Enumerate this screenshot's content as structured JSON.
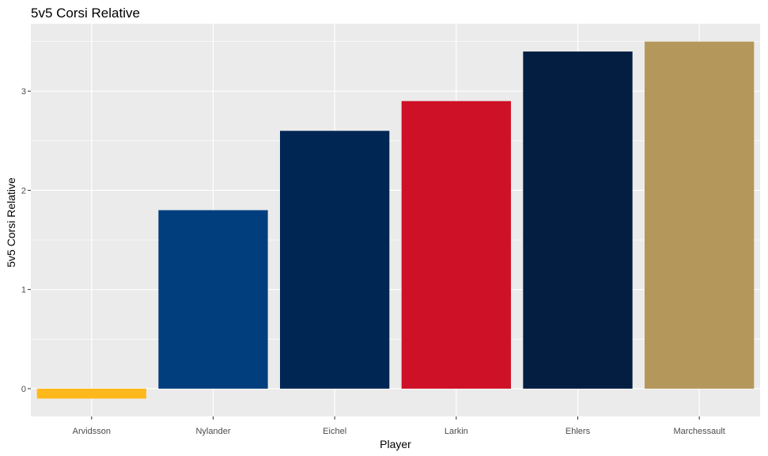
{
  "chart_data": {
    "type": "bar",
    "title": "5v5 Corsi Relative",
    "xlabel": "Player",
    "ylabel": "5v5 Corsi Relative",
    "categories": [
      "Arvidsson",
      "Nylander",
      "Eichel",
      "Larkin",
      "Ehlers",
      "Marchessault"
    ],
    "values": [
      -0.1,
      1.8,
      2.6,
      2.9,
      3.4,
      3.5
    ],
    "colors": [
      "#FFB81C",
      "#003E7E",
      "#002654",
      "#CE1126",
      "#041E42",
      "#B4975A"
    ],
    "yticks": [
      0,
      1,
      2,
      3
    ],
    "ylim": [
      -0.28,
      3.68
    ],
    "grid": true,
    "legend": "none",
    "panel_background": "#EBEBEB",
    "grid_color": "#FFFFFF"
  }
}
